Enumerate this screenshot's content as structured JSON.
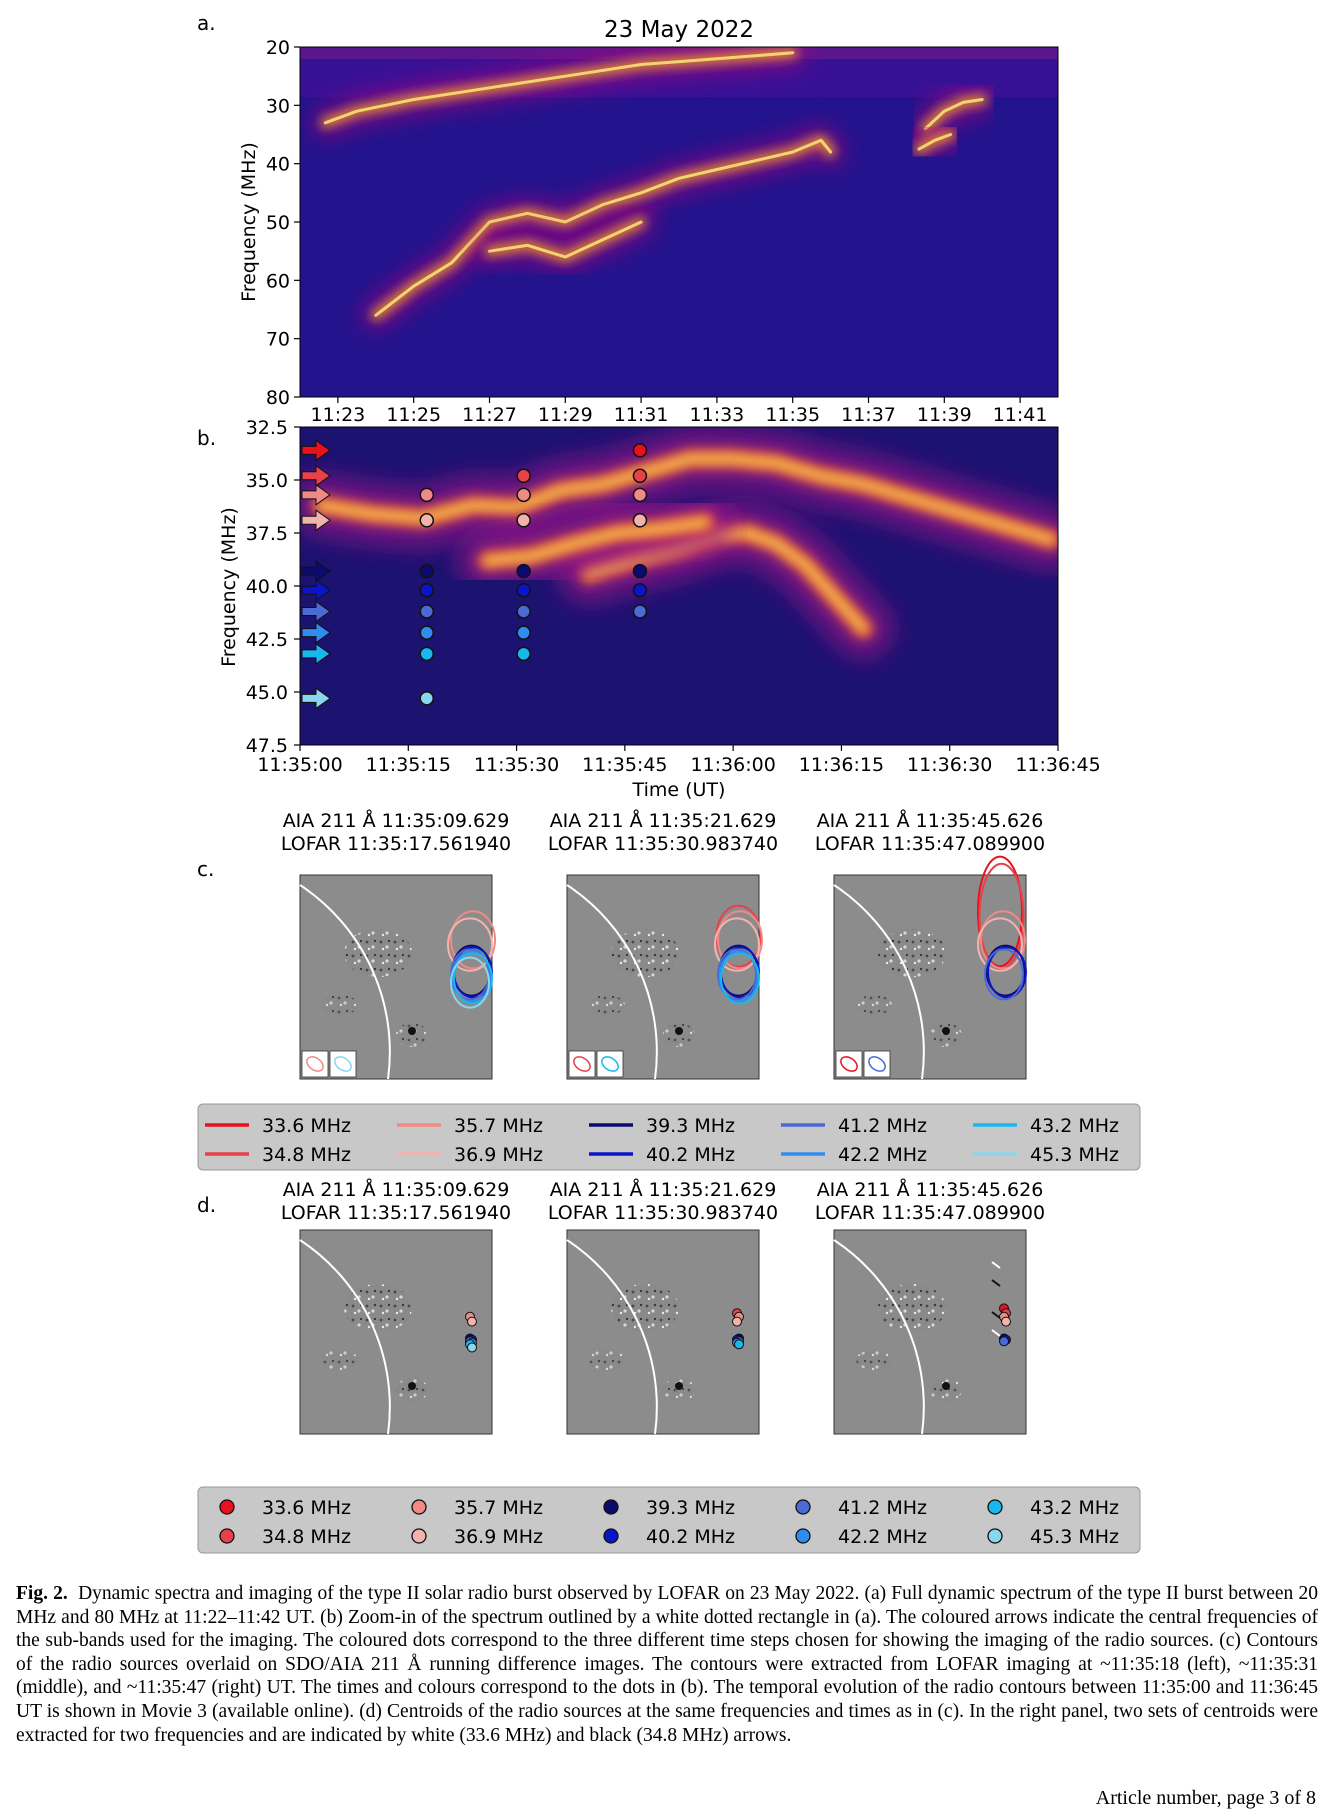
{
  "chart_data": [
    {
      "panel": "a.",
      "type": "heatmap",
      "title": "23 May 2022",
      "ylabel": "Frequency (MHz)",
      "ylim": [
        80,
        20
      ],
      "yticks": [
        "20",
        "30",
        "40",
        "50",
        "60",
        "70",
        "80"
      ],
      "xticks": [
        "11:23",
        "11:25",
        "11:27",
        "11:29",
        "11:31",
        "11:33",
        "11:35",
        "11:37",
        "11:39",
        "11:41"
      ],
      "xlim": [
        "11:22",
        "11:42"
      ],
      "zoom_box": {
        "t_start": "11:35:00",
        "t_end": "11:36:45",
        "f_low": 32.5,
        "f_high": 47.5
      },
      "bright_lanes": [
        {
          "name": "",
          "points": [
            [
              "11:22:40",
              33
            ],
            [
              "11:23:30",
              31
            ],
            [
              "11:25",
              29
            ],
            [
              "11:27",
              27
            ],
            [
              "11:29",
              25
            ],
            [
              "11:31",
              23
            ],
            [
              "11:33",
              22
            ],
            [
              "11:35",
              21
            ]
          ]
        },
        {
          "name": "",
          "points": [
            [
              "11:24",
              66
            ],
            [
              "11:25",
              61
            ],
            [
              "11:26",
              57
            ],
            [
              "11:27",
              50
            ],
            [
              "11:28",
              48.5
            ],
            [
              "11:29",
              50
            ],
            [
              "11:30",
              47
            ],
            [
              "11:31",
              45
            ],
            [
              "11:32",
              42.5
            ],
            [
              "11:33",
              41
            ],
            [
              "11:34",
              39.5
            ],
            [
              "11:35",
              38
            ],
            [
              "11:35:45",
              36
            ],
            [
              "11:36",
              38
            ]
          ]
        },
        {
          "name": "",
          "points": [
            [
              "11:27",
              55
            ],
            [
              "11:28",
              54
            ],
            [
              "11:29",
              56
            ],
            [
              "11:30",
              53
            ],
            [
              "11:31",
              50
            ]
          ]
        },
        {
          "name": "",
          "points": [
            [
              "11:38:30",
              34
            ],
            [
              "11:39",
              31
            ],
            [
              "11:39:30",
              29.5
            ],
            [
              "11:40",
              29
            ]
          ]
        },
        {
          "name": "",
          "points": [
            [
              "11:38:20",
              37.5
            ],
            [
              "11:38:45",
              36
            ],
            [
              "11:39:10",
              35
            ]
          ]
        }
      ]
    },
    {
      "panel": "b.",
      "type": "heatmap",
      "xlabel": "Time (UT)",
      "ylabel": "Frequency (MHz)",
      "ylim": [
        47.5,
        32.5
      ],
      "yticks": [
        "32.5",
        "35.0",
        "37.5",
        "40.0",
        "42.5",
        "45.0",
        "47.5"
      ],
      "xticks": [
        "11:35:00",
        "11:35:15",
        "11:35:30",
        "11:35:45",
        "11:36:00",
        "11:36:15",
        "11:36:30",
        "11:36:45"
      ],
      "xlim": [
        0,
        105
      ],
      "bright_lanes": [
        {
          "name": "",
          "points": [
            [
              3,
              36.2
            ],
            [
              10,
              36.6
            ],
            [
              17,
              36.8
            ],
            [
              24,
              36.2
            ],
            [
              30,
              36.3
            ],
            [
              36,
              35.5
            ],
            [
              42,
              35.2
            ],
            [
              48,
              34.6
            ],
            [
              54,
              34.0
            ],
            [
              60,
              34.0
            ],
            [
              66,
              34.2
            ],
            [
              72,
              34.8
            ],
            [
              78,
              35.2
            ],
            [
              84,
              35.8
            ],
            [
              90,
              36.4
            ],
            [
              96,
              37.0
            ],
            [
              104,
              37.8
            ]
          ]
        },
        {
          "name": "",
          "points": [
            [
              40,
              39.4
            ],
            [
              46,
              38.8
            ],
            [
              52,
              38.3
            ],
            [
              58,
              37.6
            ],
            [
              62,
              37.5
            ],
            [
              66,
              38.0
            ],
            [
              70,
              39.0
            ],
            [
              74,
              40.5
            ],
            [
              78,
              42.0
            ]
          ]
        },
        {
          "name": "",
          "points": [
            [
              26,
              38.8
            ],
            [
              32,
              38.6
            ],
            [
              38,
              38.0
            ],
            [
              44,
              37.5
            ],
            [
              50,
              37.3
            ],
            [
              56,
              37.0
            ]
          ]
        }
      ],
      "frequencies_MHz": [
        33.6,
        34.8,
        35.7,
        36.9,
        39.3,
        40.2,
        41.2,
        42.2,
        43.2,
        45.3
      ],
      "colors": [
        "#e8121e",
        "#e8414a",
        "#f08a86",
        "#f3b3ad",
        "#0b0b6e",
        "#0a14c8",
        "#4a6ad4",
        "#2f8cf0",
        "#18b8ee",
        "#8ad6ee"
      ],
      "dots": [
        {
          "t": 17.56,
          "freqs": [
            35.7,
            36.9,
            39.3,
            40.2,
            41.2,
            42.2,
            43.2,
            45.3
          ]
        },
        {
          "t": 30.98,
          "freqs": [
            34.8,
            35.7,
            36.9,
            39.3,
            40.2,
            41.2,
            42.2,
            43.2
          ]
        },
        {
          "t": 47.09,
          "freqs": [
            33.6,
            34.8,
            35.7,
            36.9,
            39.3,
            40.2,
            41.2
          ]
        }
      ]
    }
  ],
  "panel_labels": {
    "a": "a.",
    "b": "b.",
    "c": "c.",
    "d": "d."
  },
  "image_titles": [
    [
      "AIA 211 Å 11:35:09.629",
      "LOFAR 11:35:17.561940"
    ],
    [
      "AIA 211 Å 11:35:21.629",
      "LOFAR 11:35:30.983740"
    ],
    [
      "AIA 211 Å 11:35:45.626",
      "LOFAR 11:35:47.089900"
    ]
  ],
  "legend": {
    "labels": [
      "33.6 MHz",
      "34.8 MHz",
      "35.7 MHz",
      "36.9 MHz",
      "39.3 MHz",
      "40.2 MHz",
      "41.2 MHz",
      "42.2 MHz",
      "43.2 MHz",
      "45.3 MHz"
    ]
  },
  "caption": {
    "label": "Fig. 2.",
    "text": "Dynamic spectra and imaging of the type II solar radio burst observed by LOFAR on 23 May 2022. (a) Full dynamic spectrum of the type II burst between 20 MHz and 80 MHz at 11:22–11:42 UT. (b) Zoom-in of the spectrum outlined by a white dotted rectangle in (a). The coloured arrows indicate the central frequencies of the sub-bands used for the imaging. The coloured dots correspond to the three different time steps chosen for showing the imaging of the radio sources. (c) Contours of the radio sources overlaid on SDO/AIA 211 Å running difference images. The contours were extracted from LOFAR imaging at ~11:35:18 (left), ~11:35:31 (middle), and ~11:35:47 (right) UT. The times and colours correspond to the dots in (b). The temporal evolution of the radio contours between 11:35:00 and 11:36:45 UT is shown in Movie 3 (available online). (d) Centroids of the radio sources at the same frequencies and times as in (c). In the right panel, two sets of centroids were extracted for two frequencies and are indicated by white (33.6 MHz) and black (34.8 MHz) arrows."
  },
  "footer": "Article number, page 3 of 8"
}
